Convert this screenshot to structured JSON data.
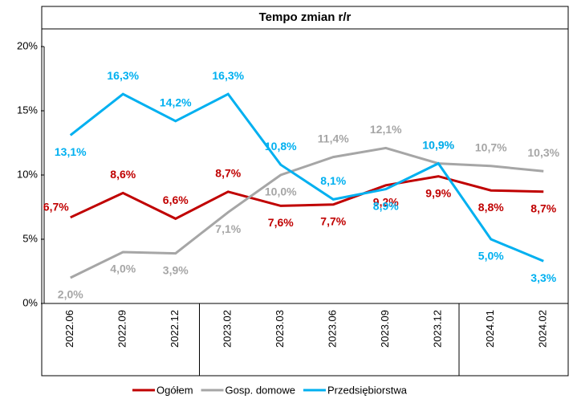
{
  "chart_data": {
    "type": "line",
    "title": "Tempo zmian r/r",
    "categories": [
      "2022.06",
      "2022.09",
      "2022.12",
      "2023.02",
      "2023.03",
      "2023.06",
      "2023.09",
      "2023.12",
      "2024.01",
      "2024.02"
    ],
    "series": [
      {
        "name": "Ogółem",
        "color": "#c00000",
        "values": [
          6.7,
          8.6,
          6.6,
          8.7,
          7.6,
          7.7,
          9.2,
          9.9,
          8.8,
          8.7
        ],
        "value_labels": [
          "6,7%",
          "8,6%",
          "6,6%",
          "8,7%",
          "7,6%",
          "7,7%",
          "9,2%",
          "9,9%",
          "8,8%",
          "8,7%"
        ]
      },
      {
        "name": "Gosp. domowe",
        "color": "#a6a6a6",
        "values": [
          2.0,
          4.0,
          3.9,
          7.1,
          10.0,
          11.4,
          12.1,
          10.9,
          10.7,
          10.3
        ],
        "value_labels": [
          "2,0%",
          "4,0%",
          "3,9%",
          "7,1%",
          "10,0%",
          "11,4%",
          "12,1%",
          "10,9%",
          "10,7%",
          "10,3%"
        ]
      },
      {
        "name": "Przedsiębiorstwa",
        "color": "#00b0f0",
        "values": [
          13.1,
          16.3,
          14.2,
          16.3,
          10.8,
          8.1,
          8.9,
          10.9,
          5.0,
          3.3
        ],
        "value_labels": [
          "13,1%",
          "16,3%",
          "14,2%",
          "16,3%",
          "10,8%",
          "8,1%",
          "8,9%",
          "10,9%",
          "5,0%",
          "3,3%"
        ]
      }
    ],
    "ylim": [
      0,
      20
    ],
    "yticks": [
      {
        "value": 0,
        "label": "0%"
      },
      {
        "value": 5,
        "label": "5%"
      },
      {
        "value": 10,
        "label": "10%"
      },
      {
        "value": 15,
        "label": "15%"
      },
      {
        "value": 20,
        "label": "20%"
      }
    ],
    "grid": false,
    "legend": "bottom"
  }
}
